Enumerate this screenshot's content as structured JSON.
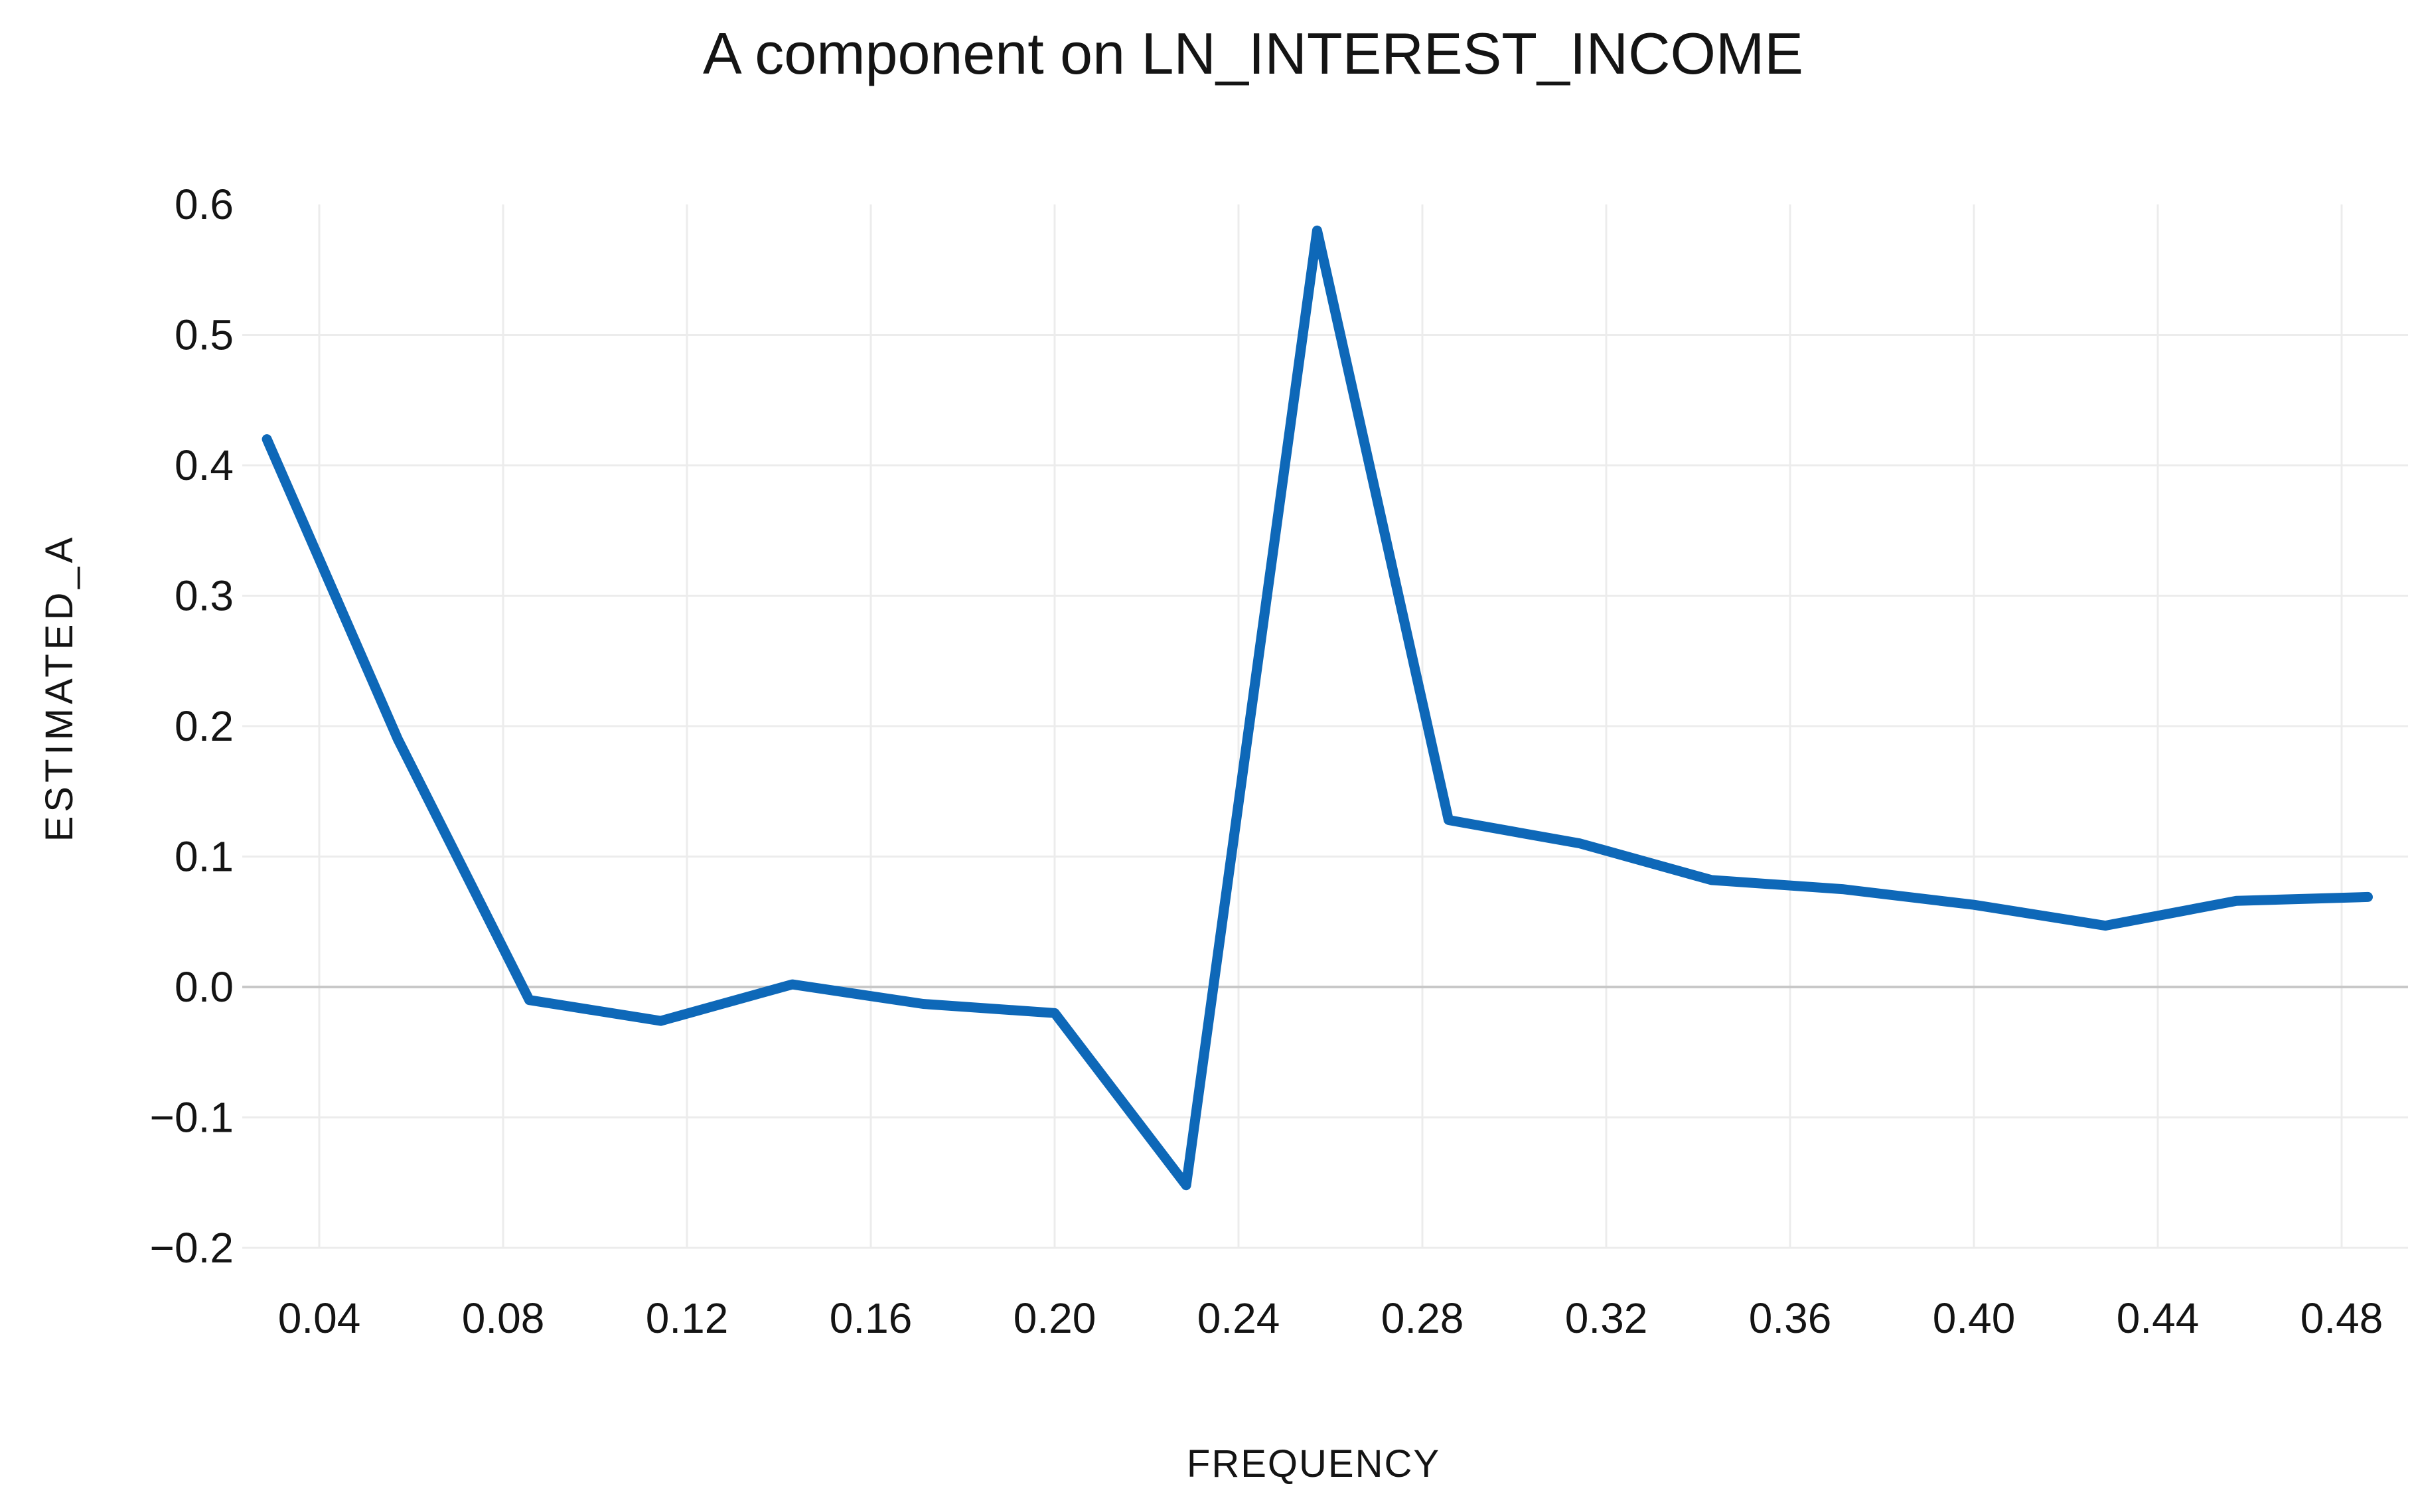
{
  "chart": {
    "title": "A component on LN_INTEREST_INCOME",
    "x_axis": {
      "label": "FREQUENCY",
      "tick_labels": [
        "0.04",
        "0.08",
        "0.12",
        "0.16",
        "0.20",
        "0.24",
        "0.28",
        "0.32",
        "0.36",
        "0.40",
        "0.44",
        "0.48"
      ],
      "tick_values": [
        0.04,
        0.08,
        0.12,
        0.16,
        0.2,
        0.24,
        0.28,
        0.32,
        0.36,
        0.4,
        0.44,
        0.48
      ]
    },
    "y_axis": {
      "label": "ESTIMATED_A",
      "tick_labels": [
        "0.6",
        "0.5",
        "0.4",
        "0.3",
        "0.2",
        "0.1",
        "0.0",
        "−0.1",
        "−0.2"
      ],
      "tick_values": [
        0.6,
        0.5,
        0.4,
        0.3,
        0.2,
        0.1,
        0.0,
        -0.1,
        -0.2
      ]
    },
    "colors": {
      "line": "#0E68B8",
      "gridline": "#ECECEC",
      "zero_line": "#C8C8C8",
      "text": "#141414",
      "background": "#FFFFFF"
    }
  },
  "chart_data": {
    "type": "line",
    "title": "A component on LN_INTEREST_INCOME",
    "xlabel": "FREQUENCY",
    "ylabel": "ESTIMATED_A",
    "x": [
      0.0286,
      0.0571,
      0.0857,
      0.1143,
      0.1429,
      0.1714,
      0.2,
      0.2286,
      0.2571,
      0.2857,
      0.3143,
      0.3429,
      0.3714,
      0.4,
      0.4286,
      0.4571,
      0.4857
    ],
    "y": [
      0.42,
      0.19,
      -0.01,
      -0.026,
      0.002,
      -0.013,
      -0.02,
      -0.152,
      0.58,
      0.128,
      0.11,
      0.082,
      0.075,
      0.063,
      0.047,
      0.066,
      0.069
    ],
    "xlim": [
      0.0286,
      0.4905
    ],
    "ylim": [
      -0.2,
      0.6
    ],
    "xticks": [
      0.04,
      0.08,
      0.12,
      0.16,
      0.2,
      0.24,
      0.28,
      0.32,
      0.36,
      0.4,
      0.44,
      0.48
    ],
    "yticks": [
      0.6,
      0.5,
      0.4,
      0.3,
      0.2,
      0.1,
      0.0,
      -0.1,
      -0.2
    ],
    "grid": true,
    "legend": false,
    "series_name": "ESTIMATED_A",
    "line_color": "#0E68B8"
  }
}
